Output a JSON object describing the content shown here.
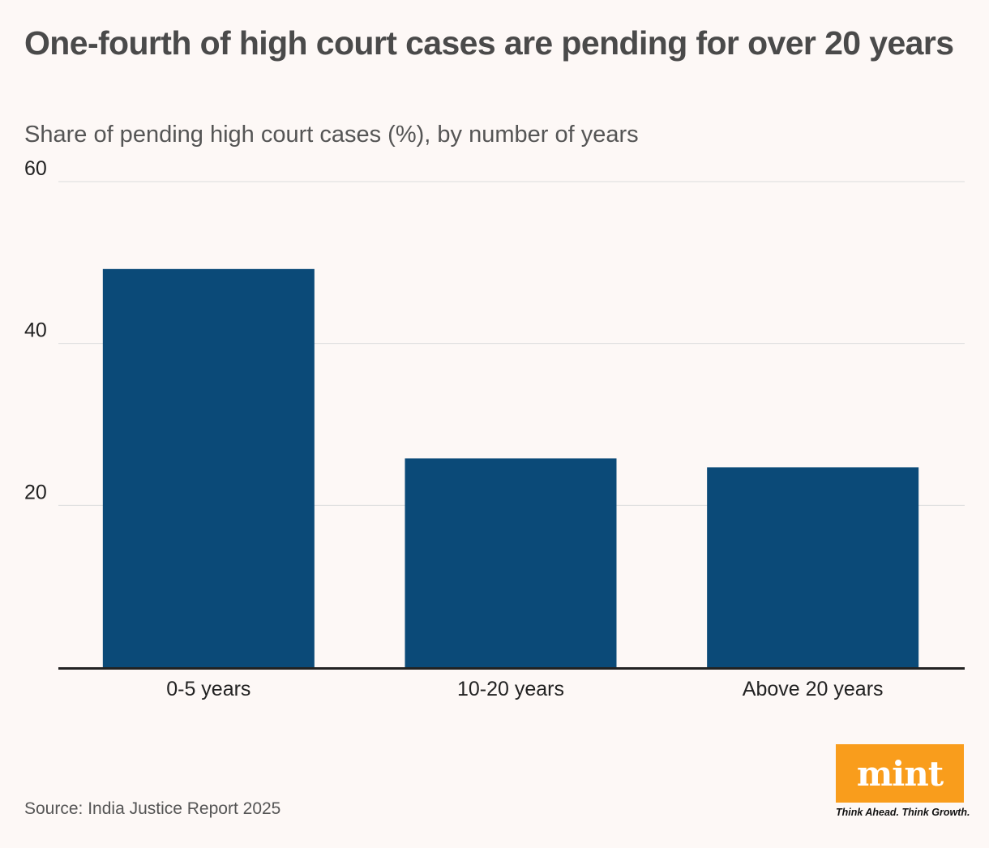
{
  "header": {
    "title": "One-fourth of high court cases are pending for over 20 years",
    "subtitle": "Share of pending high court cases (%), by number of years"
  },
  "chart_data": {
    "type": "bar",
    "categories": [
      "0-5 years",
      "10-20 years",
      "Above 20 years"
    ],
    "values": [
      49.2,
      25.8,
      24.7
    ],
    "yticks": [
      20,
      40,
      60
    ],
    "ylim": [
      0,
      60
    ],
    "grid": true,
    "legend": "none",
    "bar_color": "#0b4a78"
  },
  "footer": {
    "source": "Source: India Justice Report 2025",
    "brand": "mint",
    "tagline": "Think Ahead. Think Growth.",
    "brand_color": "#f99d1c"
  }
}
